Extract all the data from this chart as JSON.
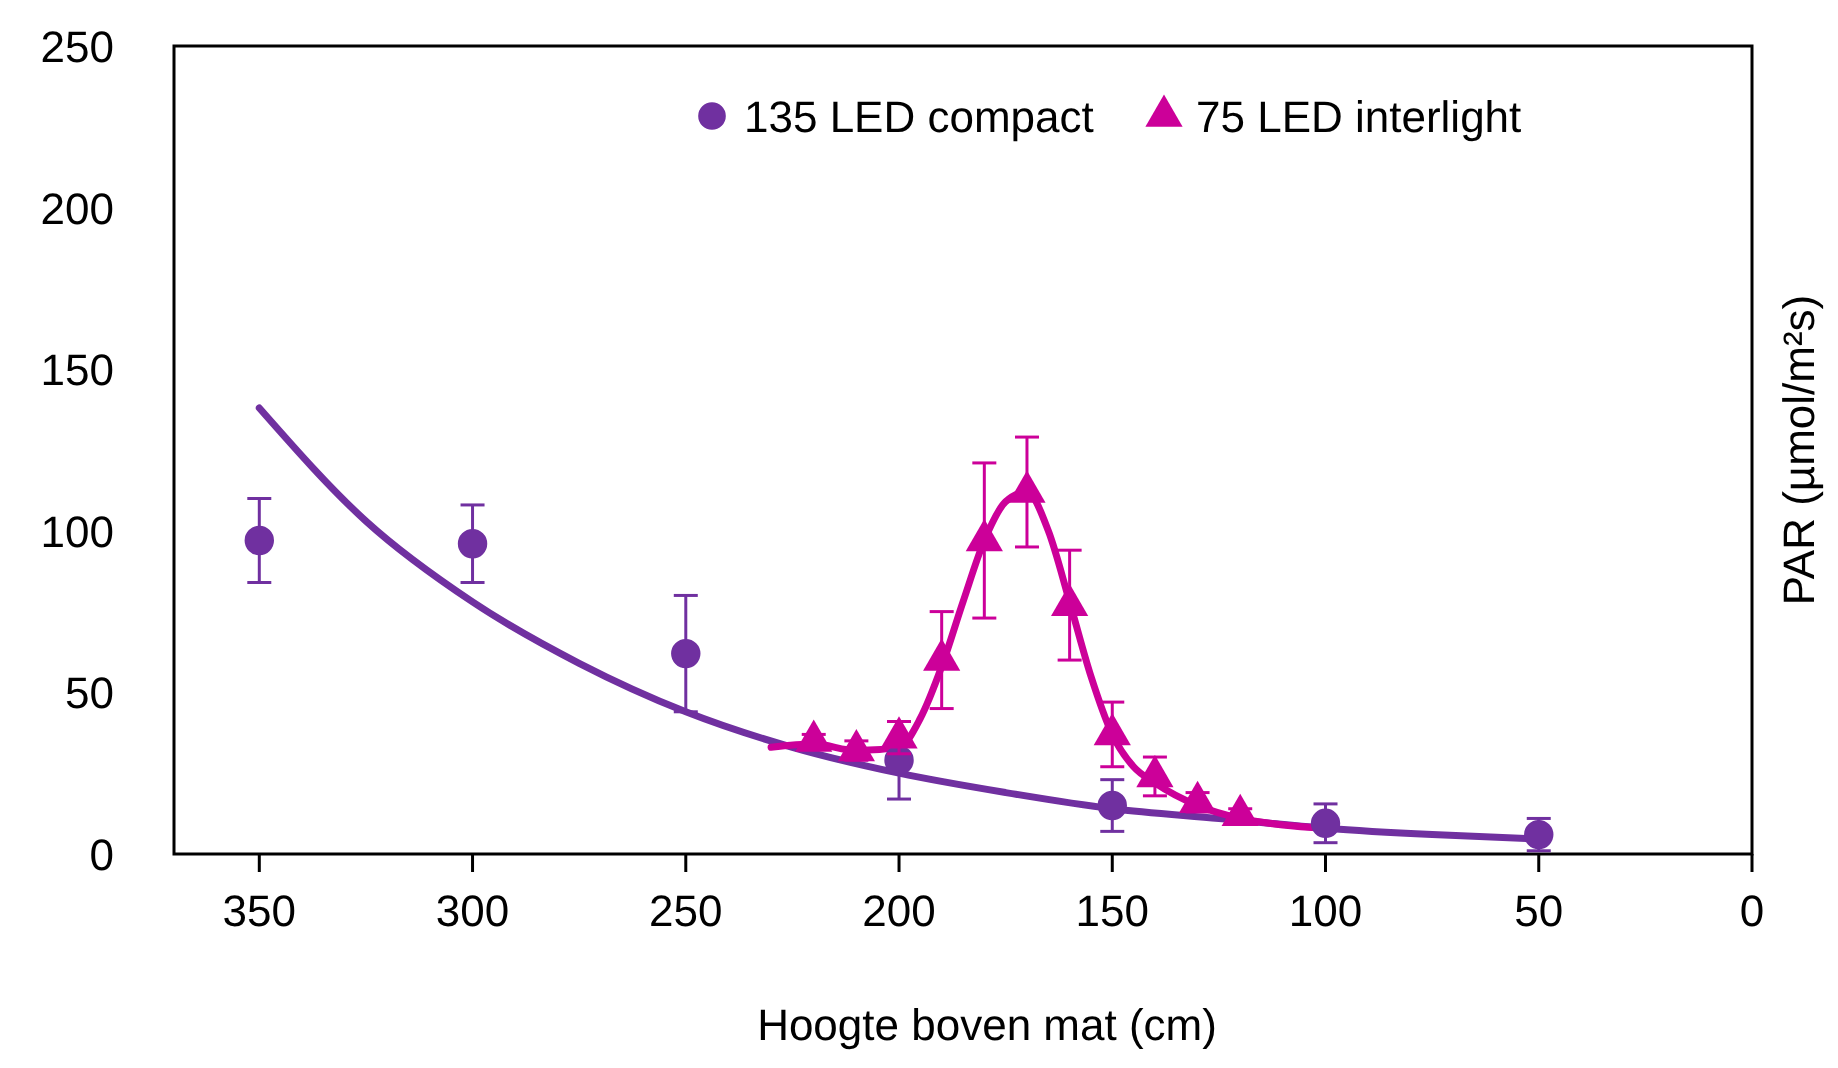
{
  "chart_data": {
    "type": "scatter",
    "xlabel": "Hoogte boven mat (cm)",
    "ylabel": "PAR (µmol/m²s)",
    "xlim": [
      370,
      0
    ],
    "xticks": [
      350,
      300,
      250,
      200,
      150,
      100,
      50,
      0
    ],
    "ylim": [
      0,
      250
    ],
    "yticks": [
      0,
      50,
      100,
      150,
      200,
      250
    ],
    "grid": false,
    "legend": "top right",
    "series": [
      {
        "name": "135 LED compact",
        "marker": "circle",
        "color": "#7030a0",
        "x": [
          350,
          300,
          250,
          200,
          150,
          100,
          50
        ],
        "values": [
          97,
          96,
          62,
          29,
          15,
          9.5,
          6
        ],
        "errors": [
          13,
          12,
          18,
          12,
          8,
          6,
          5
        ]
      },
      {
        "name": "75 LED interlight",
        "marker": "triangle",
        "color": "#cc0099",
        "x": [
          220,
          210,
          200,
          190,
          180,
          170,
          160,
          150,
          140,
          130,
          120
        ],
        "values": [
          35,
          32,
          36,
          60,
          97,
          112,
          77,
          37,
          24,
          16,
          12
        ],
        "errors": [
          2,
          3,
          5,
          15,
          24,
          17,
          17,
          10,
          6,
          3,
          2
        ]
      },
      {
        "type": "line",
        "marker": "none",
        "color": "#7030a0",
        "x": [
          350,
          325,
          300,
          275,
          250,
          225,
          200,
          175,
          150,
          125,
          100,
          75,
          50
        ],
        "values": [
          138,
          103,
          78,
          59,
          44,
          33,
          25,
          19,
          14,
          11,
          8,
          6,
          4.6
        ]
      },
      {
        "type": "line",
        "marker": "none",
        "color": "#cc0099",
        "x": [
          230,
          220,
          210,
          200,
          195,
          190,
          185,
          180,
          175,
          170,
          165,
          160,
          155,
          150,
          145,
          140,
          130,
          120,
          110,
          100
        ],
        "values": [
          33,
          34,
          32,
          33,
          42,
          58,
          78,
          97,
          109,
          112,
          100,
          78,
          55,
          37,
          27,
          22,
          15,
          11,
          9,
          8
        ]
      }
    ]
  }
}
